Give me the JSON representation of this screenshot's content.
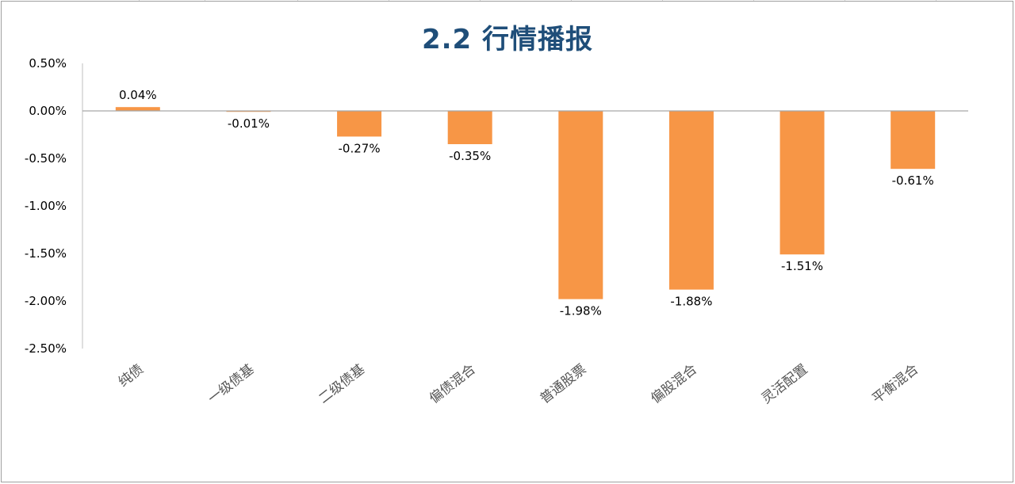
{
  "chart_data": {
    "type": "bar",
    "title": "2.2 行情播报",
    "categories": [
      "纯债",
      "一级债基",
      "二级债基",
      "偏债混合",
      "普通股票",
      "偏股混合",
      "灵活配置",
      "平衡混合"
    ],
    "values": [
      0.04,
      -0.01,
      -0.27,
      -0.35,
      -1.98,
      -1.88,
      -1.51,
      -0.61
    ],
    "data_labels": [
      "0.04%",
      "-0.01%",
      "-0.27%",
      "-0.35%",
      "-1.98%",
      "-1.88%",
      "-1.51%",
      "-0.61%"
    ],
    "y_ticks": [
      "0.50%",
      "0.00%",
      "-0.50%",
      "-1.00%",
      "-1.50%",
      "-2.00%",
      "-2.50%"
    ],
    "ylim": [
      -2.5,
      0.5
    ],
    "y_unit": "%",
    "grid": false,
    "bar_color": "#F79646"
  }
}
